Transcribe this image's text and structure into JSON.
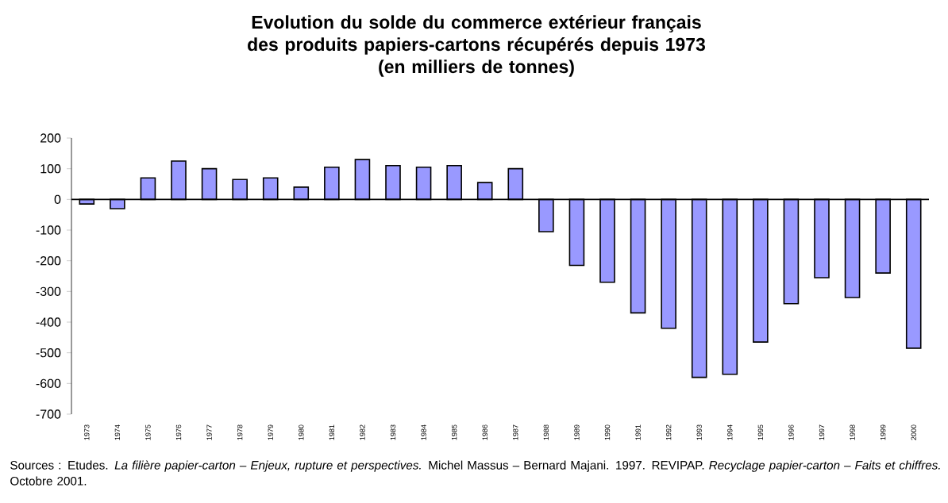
{
  "chart_data": {
    "type": "bar",
    "title": "Evolution du solde du commerce extérieur français des produits papiers-cartons récupérés depuis 1973",
    "subtitle": "(en milliers de tonnes)",
    "categories": [
      "1973",
      "1974",
      "1975",
      "1976",
      "1977",
      "1978",
      "1979",
      "1980",
      "1981",
      "1982",
      "1983",
      "1984",
      "1985",
      "1986",
      "1987",
      "1988",
      "1989",
      "1990",
      "1991",
      "1992",
      "1993",
      "1994",
      "1995",
      "1996",
      "1997",
      "1998",
      "1999",
      "2000"
    ],
    "values": [
      -15,
      -30,
      70,
      125,
      100,
      65,
      70,
      40,
      105,
      130,
      110,
      105,
      110,
      55,
      100,
      -105,
      -215,
      -270,
      -370,
      -420,
      -580,
      -570,
      -465,
      -340,
      -255,
      -320,
      -240,
      -485
    ],
    "color": "#9999ff",
    "ylim": [
      -700,
      200
    ],
    "yticks": [
      -700,
      -600,
      -500,
      -400,
      -300,
      -200,
      -100,
      0,
      100,
      200
    ],
    "annotations": [
      "Sources : Etudes. *La filière papier-carton – Enjeux, rupture et perspectives.* Michel Massus – Bernard Majani. 1997. REVIPAP. *Recyclage papier-carton – Faits et chiffres.* Octobre 2001."
    ]
  }
}
